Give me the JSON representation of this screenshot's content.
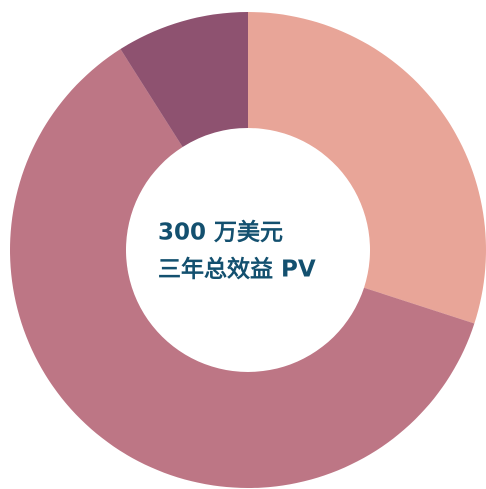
{
  "chart_data": {
    "type": "donut",
    "center_text": [
      "300 万美元",
      "三年总效益 PV"
    ],
    "values": [
      30,
      61,
      9
    ],
    "colors": [
      "#e8a598",
      "#bd7685",
      "#8e5270"
    ]
  }
}
